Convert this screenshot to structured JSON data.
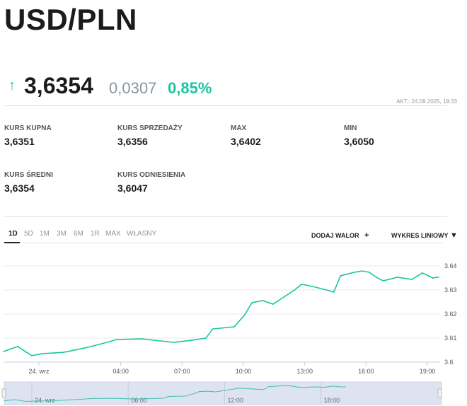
{
  "title": "USD/PLN",
  "quote": {
    "direction": "up",
    "arrow_icon": "↑",
    "price": "3,6354",
    "change": "0,0307",
    "change_pct": "0,85%",
    "updated": "AKT.: 24.09.2025, 19:33"
  },
  "stats": [
    {
      "label": "KURS KUPNA",
      "value": "3,6351"
    },
    {
      "label": "KURS SPRZEDAŻY",
      "value": "3,6356"
    },
    {
      "label": "MAX",
      "value": "3,6402"
    },
    {
      "label": "MIN",
      "value": "3,6050"
    },
    {
      "label": "KURS ŚREDNI",
      "value": "3,6354"
    },
    {
      "label": "KURS ODNIESIENIA",
      "value": "3,6047"
    }
  ],
  "tabs": [
    "1D",
    "5D",
    "1M",
    "3M",
    "6M",
    "1R",
    "MAX",
    "WŁASNY"
  ],
  "active_tab": "1D",
  "add_asset": {
    "label": "DODAJ WALOR",
    "icon": "+"
  },
  "chart_type": {
    "label": "WYKRES LINIOWY",
    "icon": "▼"
  },
  "colors": {
    "accent": "#19c6a0",
    "line": "#19c6a0",
    "navigator_bg": "#dde3f0",
    "navigator_line": "#3fbfb5"
  },
  "chart_data": {
    "type": "line",
    "ylim": [
      3.6,
      3.645
    ],
    "yticks": [
      "3.64",
      "3.63",
      "3.62",
      "3.61",
      "3.6"
    ],
    "xticks": [
      "24. wrz",
      "04:00",
      "07:00",
      "10:00",
      "13:00",
      "16:00",
      "19:00"
    ],
    "navigator_ticks": [
      "24. wrz",
      "06:00",
      "12:00",
      "18:00"
    ],
    "grid": true,
    "series": [
      {
        "points": [
          [
            "23.09 22:16",
            3.6044
          ],
          [
            "23.09 22:58",
            3.6065
          ],
          [
            "23.09 23:39",
            3.6027
          ],
          [
            "00:10",
            3.6035
          ],
          [
            "01:13",
            3.6041
          ],
          [
            "02:15",
            3.6059
          ],
          [
            "02:57",
            3.6074
          ],
          [
            "03:49",
            3.6094
          ],
          [
            "05:02",
            3.6097
          ],
          [
            "06:36",
            3.6082
          ],
          [
            "07:28",
            3.6091
          ],
          [
            "08:10",
            3.61
          ],
          [
            "08:30",
            3.6138
          ],
          [
            "09:33",
            3.6147
          ],
          [
            "10:04",
            3.6197
          ],
          [
            "10:25",
            3.6247
          ],
          [
            "10:56",
            3.6256
          ],
          [
            "11:27",
            3.6241
          ],
          [
            "11:59",
            3.6271
          ],
          [
            "12:30",
            3.63
          ],
          [
            "12:51",
            3.6324
          ],
          [
            "13:22",
            3.6315
          ],
          [
            "14:04",
            3.63
          ],
          [
            "14:25",
            3.6291
          ],
          [
            "14:45",
            3.6359
          ],
          [
            "15:27",
            3.6374
          ],
          [
            "15:48",
            3.6379
          ],
          [
            "16:09",
            3.6374
          ],
          [
            "16:30",
            3.6353
          ],
          [
            "16:50",
            3.6338
          ],
          [
            "17:32",
            3.6353
          ],
          [
            "18:14",
            3.6344
          ],
          [
            "18:45",
            3.6371
          ],
          [
            "19:16",
            3.635
          ],
          [
            "19:33",
            3.6354
          ]
        ]
      }
    ]
  }
}
